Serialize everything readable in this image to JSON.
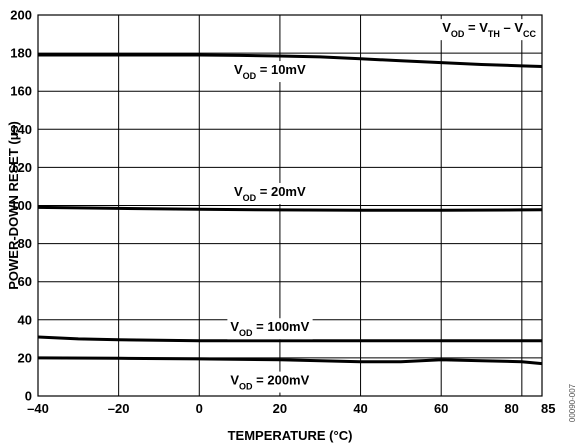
{
  "chart_data": {
    "type": "line",
    "title": "",
    "xlabel": "TEMPERATURE (°C)",
    "ylabel": "POWER-DOWN RESET (µs)",
    "xlim": [
      -40,
      85
    ],
    "ylim": [
      0,
      200
    ],
    "xticks": [
      -40,
      -20,
      0,
      20,
      40,
      60,
      80,
      85
    ],
    "xtick_labels": [
      "–40",
      "–20",
      "0",
      "20",
      "40",
      "60",
      "80",
      "85"
    ],
    "yticks": [
      0,
      20,
      40,
      60,
      80,
      100,
      120,
      140,
      160,
      180,
      200
    ],
    "grid": true,
    "annotation": {
      "parts": [
        {
          "text": "V",
          "sub": false
        },
        {
          "text": "OD",
          "sub": true
        },
        {
          "text": " = V",
          "sub": false
        },
        {
          "text": "TH",
          "sub": true
        },
        {
          "text": " – V",
          "sub": false
        },
        {
          "text": "CC",
          "sub": true
        }
      ]
    },
    "series": [
      {
        "name": "VOD = 10mV",
        "label_parts": [
          {
            "text": "V",
            "sub": false
          },
          {
            "text": "OD",
            "sub": true
          },
          {
            "text": " = 10mV",
            "sub": false
          }
        ],
        "x": [
          -40,
          -20,
          0,
          10,
          20,
          30,
          40,
          50,
          60,
          70,
          80,
          85
        ],
        "y": [
          179,
          179,
          179,
          178.8,
          178.5,
          178,
          177,
          176,
          175,
          174,
          173.3,
          173
        ]
      },
      {
        "name": "VOD = 20mV",
        "label_parts": [
          {
            "text": "V",
            "sub": false
          },
          {
            "text": "OD",
            "sub": true
          },
          {
            "text": " = 20mV",
            "sub": false
          }
        ],
        "x": [
          -40,
          -20,
          0,
          20,
          40,
          60,
          80,
          85
        ],
        "y": [
          99,
          98.5,
          98,
          97.7,
          97.5,
          97.5,
          97.7,
          97.8
        ]
      },
      {
        "name": "VOD = 100mV",
        "label_parts": [
          {
            "text": "V",
            "sub": false
          },
          {
            "text": "OD",
            "sub": true
          },
          {
            "text": " = 100mV",
            "sub": false
          }
        ],
        "x": [
          -40,
          -30,
          -20,
          0,
          20,
          40,
          60,
          80,
          85
        ],
        "y": [
          31,
          30,
          29.5,
          29,
          29,
          29,
          29,
          29,
          29
        ]
      },
      {
        "name": "VOD = 200mV",
        "label_parts": [
          {
            "text": "V",
            "sub": false
          },
          {
            "text": "OD",
            "sub": true
          },
          {
            "text": " = 200mV",
            "sub": false
          }
        ],
        "x": [
          -40,
          -20,
          0,
          20,
          40,
          50,
          60,
          70,
          80,
          85
        ],
        "y": [
          20,
          19.8,
          19.5,
          19,
          18,
          18,
          19,
          18.5,
          18,
          17
        ]
      }
    ],
    "figure_id": "00090-007"
  }
}
